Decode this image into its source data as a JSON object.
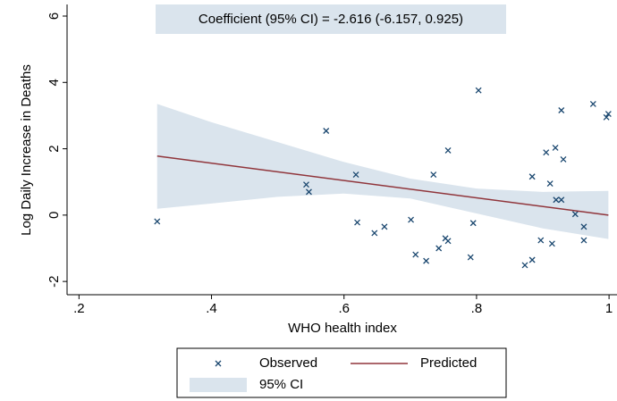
{
  "chart_data": {
    "type": "scatter",
    "annotation": "Coefficient (95% CI) = -2.616 (-6.157, 0.925)",
    "x_label": "WHO health index",
    "y_label": "Log Daily Increase in Deaths",
    "xlim": [
      0.182,
      1.012
    ],
    "ylim": [
      -2.4,
      6.35
    ],
    "xticks": [
      {
        "value": 0.2,
        "label": ".2"
      },
      {
        "value": 0.4,
        "label": ".4"
      },
      {
        "value": 0.6,
        "label": ".6"
      },
      {
        "value": 0.8,
        "label": ".8"
      },
      1
    ],
    "yticks": [
      -2,
      0,
      2,
      4,
      6
    ],
    "series": [
      {
        "name": "Observed",
        "kind": "points",
        "color": "#1a476f",
        "x": [
          0.318,
          0.543,
          0.547,
          0.573,
          0.618,
          0.62,
          0.646,
          0.661,
          0.701,
          0.708,
          0.724,
          0.735,
          0.743,
          0.753,
          0.757,
          0.757,
          0.795,
          0.791,
          0.803,
          0.873,
          0.884,
          0.884,
          0.897,
          0.905,
          0.911,
          0.914,
          0.919,
          0.92,
          0.928,
          0.928,
          0.931,
          0.949,
          0.962,
          0.962,
          0.976,
          0.996,
          0.999
        ],
        "values": [
          -0.19,
          0.92,
          0.7,
          2.54,
          1.22,
          -0.22,
          -0.54,
          -0.35,
          -0.14,
          -1.19,
          -1.38,
          1.22,
          -1.0,
          -0.7,
          -0.78,
          1.95,
          -0.24,
          -1.27,
          3.76,
          -1.51,
          -1.35,
          1.16,
          -0.76,
          1.89,
          0.95,
          -0.86,
          2.03,
          0.46,
          0.46,
          3.16,
          1.68,
          0.03,
          -0.35,
          -0.76,
          3.35,
          2.95,
          3.05
        ]
      },
      {
        "name": "Predicted",
        "kind": "line",
        "color": "#90353b",
        "x": [
          0.318,
          0.999
        ],
        "values": [
          1.78,
          0.0
        ]
      },
      {
        "name": "95% CI",
        "kind": "band",
        "color": "#dae4ed",
        "x": [
          0.318,
          0.4,
          0.5,
          0.6,
          0.7,
          0.8,
          0.9,
          0.999
        ],
        "upper": [
          3.35,
          2.8,
          2.2,
          1.6,
          1.1,
          0.8,
          0.7,
          0.73
        ],
        "lower": [
          0.19,
          0.35,
          0.55,
          0.65,
          0.5,
          0.05,
          -0.4,
          -0.72
        ]
      }
    ]
  }
}
